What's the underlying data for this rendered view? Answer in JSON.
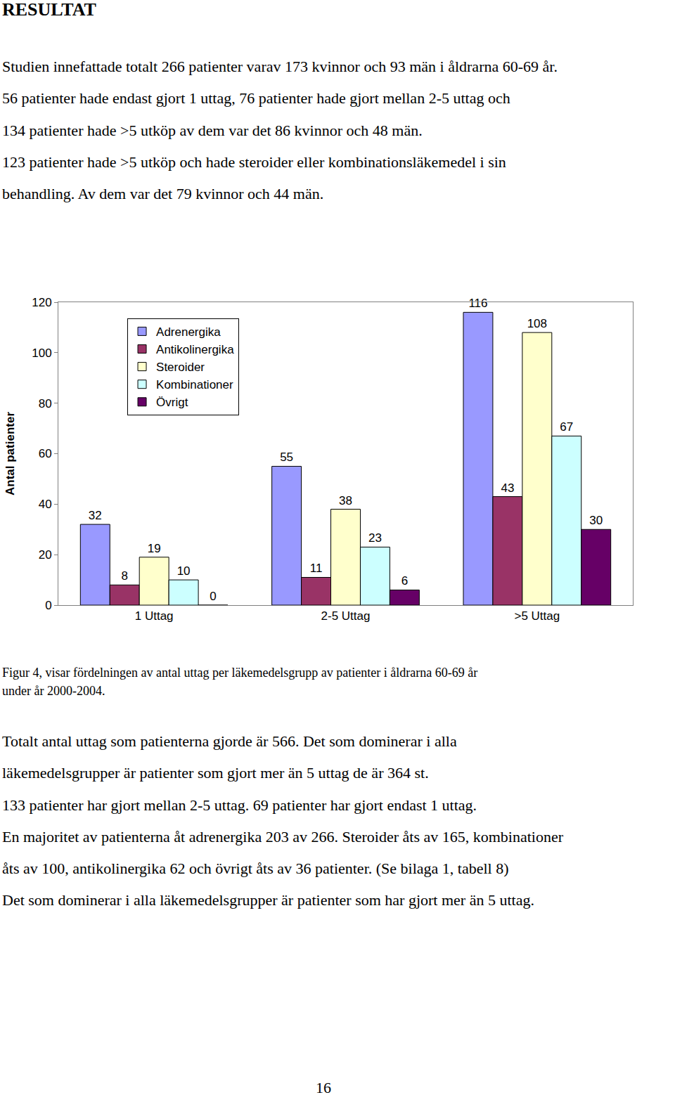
{
  "heading": "RESULTAT",
  "intro_lines": [
    "Studien innefattade totalt 266 patienter varav 173 kvinnor och 93 män i åldrarna 60-69 år.",
    "56 patienter hade endast gjort 1 uttag, 76 patienter hade gjort mellan 2-5 uttag och",
    "134 patienter hade >5 utköp av dem var det 86 kvinnor och 48 män.",
    "123 patienter hade >5 utköp och hade steroider eller kombinationsläkemedel i sin",
    "behandling. Av dem var det 79 kvinnor och 44 män."
  ],
  "chart_data": {
    "type": "bar",
    "y_label": "Antal patienter",
    "categories": [
      "1 Uttag",
      "2-5 Uttag",
      ">5 Uttag"
    ],
    "series": [
      {
        "name": "Adrenergika",
        "color": "#9999ff",
        "values": [
          32,
          55,
          116
        ]
      },
      {
        "name": "Antikolinergika",
        "color": "#993366",
        "values": [
          8,
          11,
          43
        ]
      },
      {
        "name": "Steroider",
        "color": "#ffffcc",
        "values": [
          19,
          38,
          108
        ]
      },
      {
        "name": "Kombinationer",
        "color": "#ccffff",
        "values": [
          10,
          23,
          67
        ]
      },
      {
        "name": "Övrigt",
        "color": "#660066",
        "values": [
          0,
          6,
          30
        ]
      }
    ],
    "ylim": [
      0,
      120
    ],
    "yticks": [
      0,
      20,
      40,
      60,
      80,
      100,
      120
    ],
    "grid": false,
    "legend": "top-left",
    "data_labels": true
  },
  "caption_lines": [
    "Figur 4, visar fördelningen av antal uttag per läkemedelsgrupp av patienter i åldrarna 60-69 år",
    "under år 2000-2004."
  ],
  "body_lines": [
    "Totalt antal uttag som patienterna gjorde är 566. Det som dominerar i alla",
    "läkemedelsgrupper är patienter som gjort mer än 5 uttag de är 364 st.",
    "133 patienter har gjort mellan 2-5 uttag. 69 patienter har gjort endast 1 uttag.",
    "En majoritet av patienterna åt adrenergika 203 av 266. Steroider åts av 165, kombinationer",
    "åts av 100, antikolinergika 62 och övrigt åts av 36 patienter. (Se bilaga 1, tabell 8)",
    "Det som dominerar i alla läkemedelsgrupper är patienter som har gjort mer än 5 uttag."
  ],
  "page_number": "16"
}
